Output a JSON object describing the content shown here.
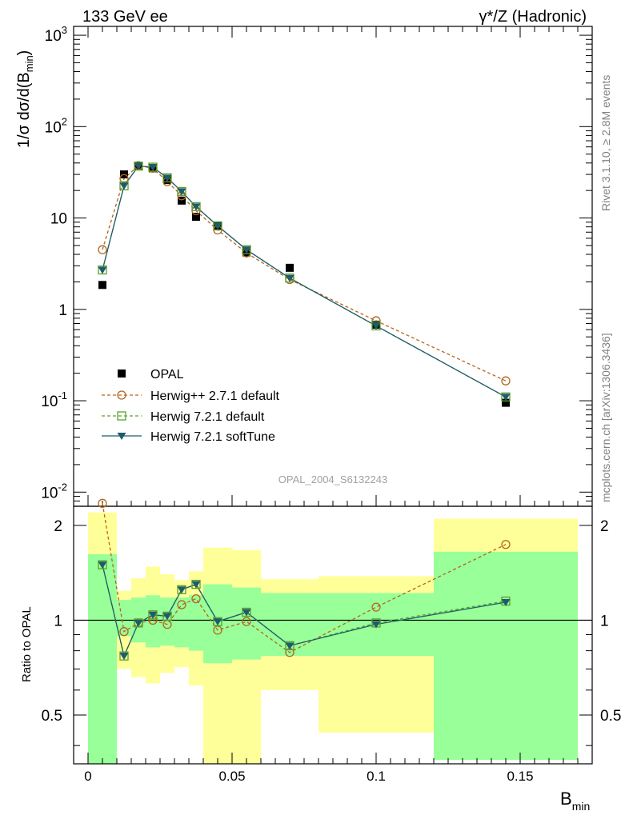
{
  "chart_data": {
    "type": "line",
    "title_left": "133 GeV ee",
    "title_right": "γ*/Z (Hadronic)",
    "side_label_top": "Rivet 3.1.10, ≥ 2.8M events",
    "side_label_bottom": "mcplots.cern.ch [arXiv:1306.3436]",
    "analysis_id": "OPAL_2004_S6132243",
    "xlabel": "B",
    "xlabel_sub": "min",
    "ylabel": "1/σ dσ/d(B",
    "ylabel_sub": "min",
    "ylabel_close": ")",
    "ratio_ylabel": "Ratio to OPAL",
    "xlim": [
      -0.005,
      0.175
    ],
    "ylim": [
      0.007,
      1250
    ],
    "ratio_ylim": [
      0.35,
      2.3
    ],
    "x_ticks": [
      "0",
      "0.05",
      "0.1",
      "0.15"
    ],
    "y_ticks": [
      "10^-2",
      "10^-1",
      "1",
      "10",
      "10^2",
      "10^3"
    ],
    "ratio_ticks": [
      "0.5",
      "1",
      "2"
    ],
    "bins": [
      {
        "lo": 0.0,
        "hi": 0.01,
        "x": 0.005
      },
      {
        "lo": 0.01,
        "hi": 0.015,
        "x": 0.0125
      },
      {
        "lo": 0.015,
        "hi": 0.02,
        "x": 0.0175
      },
      {
        "lo": 0.02,
        "hi": 0.025,
        "x": 0.0225
      },
      {
        "lo": 0.025,
        "hi": 0.03,
        "x": 0.0275
      },
      {
        "lo": 0.03,
        "hi": 0.035,
        "x": 0.0325
      },
      {
        "lo": 0.035,
        "hi": 0.04,
        "x": 0.0375
      },
      {
        "lo": 0.04,
        "hi": 0.05,
        "x": 0.045
      },
      {
        "lo": 0.05,
        "hi": 0.06,
        "x": 0.055
      },
      {
        "lo": 0.06,
        "hi": 0.08,
        "x": 0.07
      },
      {
        "lo": 0.08,
        "hi": 0.12,
        "x": 0.1
      },
      {
        "lo": 0.12,
        "hi": 0.17,
        "x": 0.145
      }
    ],
    "band_green": [
      [
        0.35,
        1.62
      ],
      [
        0.89,
        1.16
      ],
      [
        0.85,
        1.18
      ],
      [
        0.82,
        1.2
      ],
      [
        0.83,
        1.18
      ],
      [
        0.82,
        1.18
      ],
      [
        0.8,
        1.2
      ],
      [
        0.73,
        1.3
      ],
      [
        0.75,
        1.27
      ],
      [
        0.77,
        1.22
      ],
      [
        0.77,
        1.22
      ],
      [
        0.36,
        1.65
      ]
    ],
    "band_yellow": [
      [
        0.35,
        2.2
      ],
      [
        0.7,
        1.24
      ],
      [
        0.66,
        1.36
      ],
      [
        0.63,
        1.48
      ],
      [
        0.68,
        1.4
      ],
      [
        0.71,
        1.34
      ],
      [
        0.62,
        1.43
      ],
      [
        0.35,
        1.7
      ],
      [
        0.35,
        1.67
      ],
      [
        0.6,
        1.35
      ],
      [
        0.44,
        1.38
      ],
      [
        0.37,
        2.1
      ]
    ],
    "series": [
      {
        "name": "OPAL",
        "marker": "square-filled",
        "color": "#000000",
        "line": "none",
        "y": [
          1.85,
          30.0,
          37.0,
          35.0,
          26.0,
          15.5,
          10.3,
          8.2,
          4.2,
          2.85,
          0.68,
          0.095
        ]
      },
      {
        "name": "Herwig++ 2.7.1 default",
        "marker": "circle-open",
        "color": "#b5651d",
        "line": "dashed",
        "y": [
          4.5,
          27.0,
          37.5,
          35.0,
          25.0,
          17.5,
          12.0,
          7.4,
          4.15,
          2.12,
          0.75,
          0.165
        ],
        "ratio": [
          2.35,
          0.92,
          0.98,
          1.0,
          0.97,
          1.12,
          1.17,
          0.93,
          0.99,
          0.79,
          1.1,
          1.74
        ]
      },
      {
        "name": "Herwig 7.2.1 default",
        "marker": "square-open",
        "color": "#5aa02c",
        "line": "dashed",
        "y": [
          2.7,
          22.5,
          37.0,
          36.0,
          27.5,
          19.5,
          13.3,
          8.2,
          4.5,
          2.2,
          0.66,
          0.11
        ],
        "ratio": [
          1.5,
          0.77,
          0.98,
          1.04,
          1.03,
          1.25,
          1.3,
          0.99,
          1.06,
          0.83,
          0.98,
          1.15
        ]
      },
      {
        "name": "Herwig 7.2.1 softTune",
        "marker": "triangle-down-filled",
        "color": "#1f5c6b",
        "line": "solid",
        "y": [
          2.7,
          22.5,
          37.0,
          36.0,
          27.5,
          19.5,
          13.3,
          8.2,
          4.5,
          2.2,
          0.66,
          0.11
        ],
        "ratio": [
          1.5,
          0.77,
          0.98,
          1.04,
          1.03,
          1.25,
          1.3,
          0.99,
          1.06,
          0.83,
          0.97,
          1.14
        ]
      }
    ]
  }
}
